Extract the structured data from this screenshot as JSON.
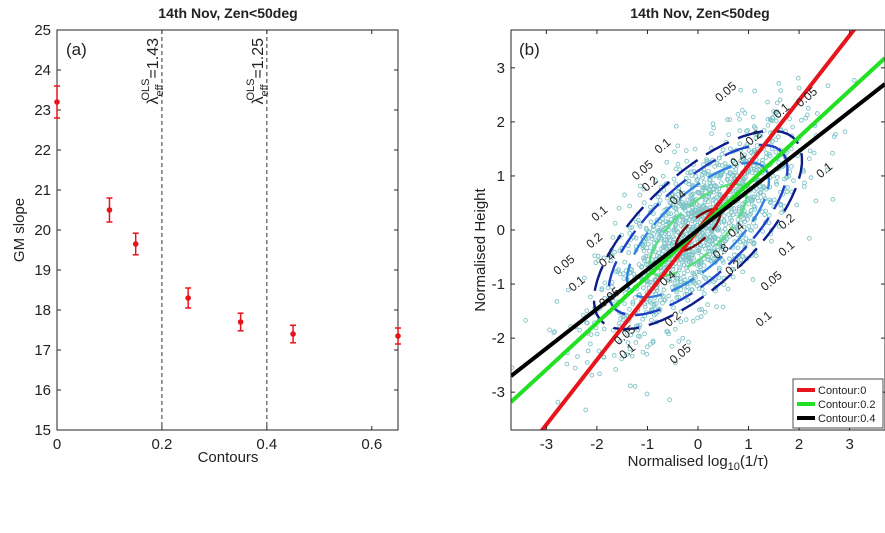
{
  "chart_data": [
    {
      "type": "scatter",
      "panel_label": "(a)",
      "title": "14th Nov, Zen<50deg",
      "xlabel": "Contours",
      "ylabel": "GM slope",
      "xlim": [
        0,
        0.65
      ],
      "ylim": [
        15,
        25
      ],
      "xticks": [
        "0",
        "0.2",
        "0.4",
        "0.6"
      ],
      "yticks": [
        "15",
        "16",
        "17",
        "18",
        "19",
        "20",
        "21",
        "22",
        "23",
        "24",
        "25"
      ],
      "points": {
        "x": [
          0,
          0.1,
          0.15,
          0.25,
          0.35,
          0.45,
          0.65
        ],
        "y": [
          23.2,
          20.5,
          19.65,
          18.3,
          17.7,
          17.4,
          17.35
        ],
        "err": [
          0.4,
          0.3,
          0.27,
          0.25,
          0.22,
          0.22,
          0.2
        ]
      },
      "marker_color": "#e8141b",
      "vlines": [
        {
          "x": 0.2,
          "label": "λ",
          "sup": "OLS",
          "sub": "eff",
          "value": "=1.43"
        },
        {
          "x": 0.4,
          "label": "λ",
          "sup": "OLS",
          "sub": "eff",
          "value": "=1.25"
        }
      ]
    },
    {
      "type": "scatter",
      "panel_label": "(b)",
      "title": "14th Nov, Zen<50deg",
      "xlabel_main": "Normalised log",
      "xlabel_sub": "10",
      "xlabel_tail": "(1/τ)",
      "ylabel": "Normalised Height",
      "xlim": [
        -3.7,
        3.7
      ],
      "ylim": [
        -3.7,
        3.7
      ],
      "xticks": [
        "-3",
        "-2",
        "-1",
        "0",
        "1",
        "2",
        "3"
      ],
      "yticks": [
        "-3",
        "-2",
        "-1",
        "0",
        "1",
        "2",
        "3"
      ],
      "scatter_color": "#7fc4c8",
      "contour_levels": [
        "0.05",
        "0.1",
        "0.2",
        "0.4",
        "0.8"
      ],
      "contour_colors": [
        "#0b1b8a",
        "#1c3fc4",
        "#2f80e0",
        "#55e07a",
        "#7a0a0a"
      ],
      "contour_labels": [
        "0.05",
        "0.05",
        "0.05",
        "0.05",
        "0.05",
        "0.05",
        "0.05",
        "0.05",
        "0.1",
        "0.1",
        "0.1",
        "0.1",
        "0.1",
        "0.1",
        "0.1",
        "0.1",
        "0.2",
        "0.2",
        "0.2",
        "0.2",
        "0.2",
        "0.2",
        "0.4",
        "0.4",
        "0.4",
        "0.4",
        "0.4",
        "0.8"
      ],
      "fit_lines": [
        {
          "name": "Contour:0",
          "slope": 1.2,
          "intercept": 0.0,
          "color": "#e8141b"
        },
        {
          "name": "Contour:0.2",
          "slope": 0.86,
          "intercept": 0.0,
          "color": "#22e022"
        },
        {
          "name": "Contour:0.4",
          "slope": 0.73,
          "intercept": 0.0,
          "color": "#000000"
        }
      ],
      "legend_position": "bottom-right"
    }
  ]
}
